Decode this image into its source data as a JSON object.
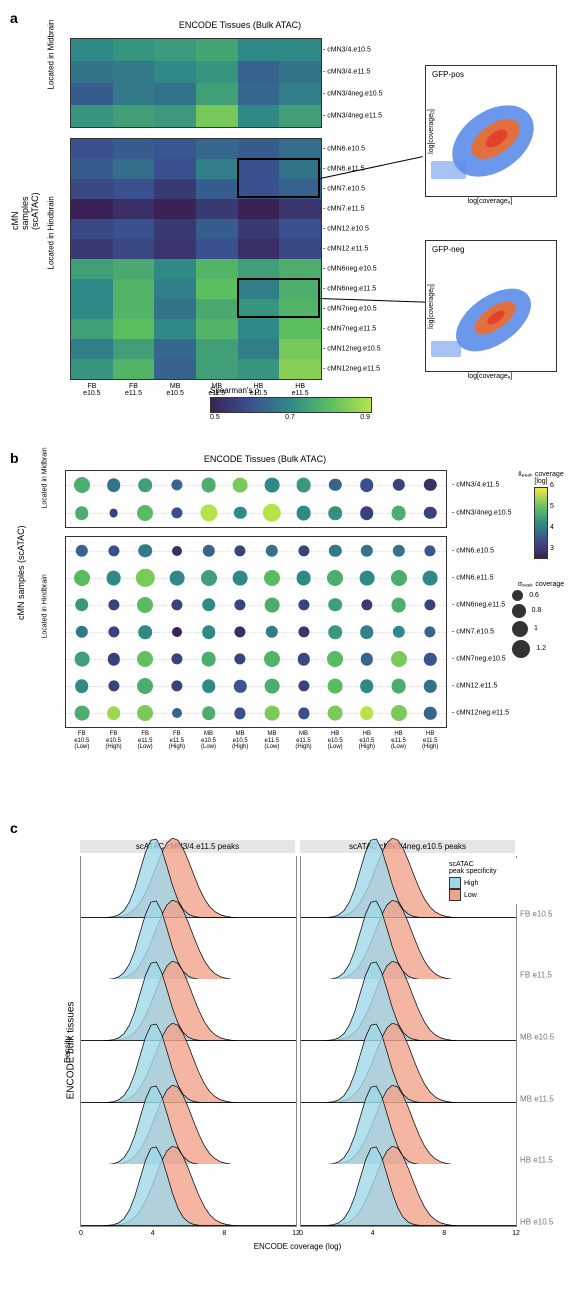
{
  "panel_a": {
    "letter": "a",
    "title": "ENCODE Tissues (Bulk ATAC)",
    "ylabel_outer": "cMN samples (scATAC)",
    "ylabel_top": "Located in Midbrain",
    "ylabel_bottom": "Located in Hindbrain",
    "x_labels": [
      "FB\ne10.5",
      "FB\ne11.5",
      "MB\ne10.5",
      "MB\ne11.5",
      "HB\ne10.5",
      "HB\ne11.5"
    ],
    "heatmap_top": {
      "rows": [
        "cMN3/4.e10.5",
        "cMN3/4.e11.5",
        "cMN3/4neg.e10.5",
        "cMN3/4neg.e11.5"
      ],
      "values": [
        [
          0.7,
          0.72,
          0.73,
          0.75,
          0.7,
          0.7
        ],
        [
          0.66,
          0.67,
          0.7,
          0.72,
          0.63,
          0.66
        ],
        [
          0.62,
          0.67,
          0.66,
          0.74,
          0.64,
          0.68
        ],
        [
          0.72,
          0.74,
          0.73,
          0.83,
          0.7,
          0.74
        ]
      ]
    },
    "heatmap_bottom": {
      "rows": [
        "cMN6.e10.5",
        "cMN6.e11.5",
        "cMN7.e10.5",
        "cMN7.e11.5",
        "cMN12.e10.5",
        "cMN12.e11.5",
        "cMN6neg.e10.5",
        "cMN6neg.e11.5",
        "cMN7neg.e10.5",
        "cMN7neg.e11.5",
        "cMN12neg.e10.5",
        "cMN12neg.e11.5"
      ],
      "values": [
        [
          0.6,
          0.62,
          0.61,
          0.64,
          0.62,
          0.65
        ],
        [
          0.62,
          0.65,
          0.6,
          0.68,
          0.6,
          0.66
        ],
        [
          0.58,
          0.6,
          0.55,
          0.62,
          0.6,
          0.63
        ],
        [
          0.5,
          0.53,
          0.5,
          0.55,
          0.5,
          0.54
        ],
        [
          0.58,
          0.6,
          0.55,
          0.62,
          0.55,
          0.6
        ],
        [
          0.55,
          0.58,
          0.54,
          0.6,
          0.53,
          0.58
        ],
        [
          0.74,
          0.76,
          0.7,
          0.78,
          0.74,
          0.77
        ],
        [
          0.7,
          0.78,
          0.68,
          0.8,
          0.68,
          0.77
        ],
        [
          0.7,
          0.78,
          0.66,
          0.76,
          0.72,
          0.78
        ],
        [
          0.74,
          0.8,
          0.7,
          0.78,
          0.7,
          0.8
        ],
        [
          0.68,
          0.74,
          0.64,
          0.74,
          0.68,
          0.83
        ],
        [
          0.72,
          0.78,
          0.63,
          0.74,
          0.72,
          0.85
        ]
      ]
    },
    "legend": {
      "title": "Spearman's ρ",
      "min": 0.5,
      "mid": 0.7,
      "max": 0.9,
      "gradient": [
        "#3a2256",
        "#3a5290",
        "#2f8a87",
        "#5bbf60",
        "#b7e249"
      ]
    },
    "callouts": [
      {
        "heatmap": "bottom",
        "row_from": 1,
        "row_to": 3,
        "col_from": 4,
        "col_to": 6,
        "target": "scatter1"
      },
      {
        "heatmap": "bottom",
        "row_from": 7,
        "row_to": 9,
        "col_from": 4,
        "col_to": 6,
        "target": "scatter2"
      }
    ],
    "scatter": [
      {
        "title": "GFP-pos",
        "xlabel": "log[coverageₐ]",
        "ylabel": "log[coverageᵦ]",
        "xlim": [
          0,
          10
        ],
        "ylim": [
          0,
          10
        ],
        "ticks": [
          2,
          4,
          6,
          8,
          10
        ],
        "colors": [
          "#2d5fd3",
          "#ef6c2c",
          "#e33b2b"
        ]
      },
      {
        "title": "GFP-neg",
        "xlabel": "log[coverageₐ]",
        "ylabel": "log[coverageᵦ]",
        "xlim": [
          0,
          10
        ],
        "ylim": [
          0,
          10
        ],
        "ticks": [
          2,
          4,
          6,
          8,
          10
        ],
        "colors": [
          "#2d5fd3",
          "#ef6c2c",
          "#e33b2b"
        ]
      }
    ]
  },
  "panel_b": {
    "letter": "b",
    "title": "ENCODE Tissues (Bulk ATAC)",
    "ylabel_outer": "cMN samples (scATAC)",
    "ylabel_top": "Located in\nMidbrain",
    "ylabel_bottom": "Located in Hindbrain",
    "x_labels": [
      "FB\ne10.5\n(Low)",
      "FB\ne10.5\n(High)",
      "FB\ne11.5\n(Low)",
      "FB\ne11.5\n(High)",
      "MB\ne10.5\n(Low)",
      "MB\ne10.5\n(High)",
      "MB\ne11.5\n(Low)",
      "MB\ne11.5\n(High)",
      "HB\ne10.5\n(Low)",
      "HB\ne10.5\n(High)",
      "HB\ne11.5\n(Low)",
      "HB\ne11.5\n(High)"
    ],
    "rows_top": [
      "cMN3/4.e11.5",
      "cMN3/4neg.e10.5"
    ],
    "rows_bottom": [
      "cMN6.e10.5",
      "cMN6.e11.5",
      "cMN6neg.e11.5",
      "cMN7.e10.5",
      "cMN7neg.e10.5",
      "cMN12.e11.5",
      "cMN12neg.e11.5"
    ],
    "dots_top": [
      [
        {
          "c": 5.0,
          "s": 1.0
        },
        {
          "c": 4.2,
          "s": 0.8
        },
        {
          "c": 4.8,
          "s": 0.8
        },
        {
          "c": 4.0,
          "s": 0.6
        },
        {
          "c": 5.0,
          "s": 0.9
        },
        {
          "c": 5.5,
          "s": 0.9
        },
        {
          "c": 4.5,
          "s": 0.9
        },
        {
          "c": 4.7,
          "s": 0.9
        },
        {
          "c": 4.0,
          "s": 0.7
        },
        {
          "c": 3.7,
          "s": 0.8
        },
        {
          "c": 3.5,
          "s": 0.7
        },
        {
          "c": 3.2,
          "s": 0.7
        }
      ],
      [
        {
          "c": 5.0,
          "s": 0.8
        },
        {
          "c": 3.5,
          "s": 0.4
        },
        {
          "c": 5.2,
          "s": 1.0
        },
        {
          "c": 3.7,
          "s": 0.6
        },
        {
          "c": 6.0,
          "s": 1.1
        },
        {
          "c": 4.5,
          "s": 0.7
        },
        {
          "c": 6.2,
          "s": 1.2
        },
        {
          "c": 4.5,
          "s": 0.9
        },
        {
          "c": 4.6,
          "s": 0.8
        },
        {
          "c": 3.5,
          "s": 0.8
        },
        {
          "c": 5.0,
          "s": 0.9
        },
        {
          "c": 3.5,
          "s": 0.7
        }
      ]
    ],
    "dots_bottom": [
      [
        {
          "c": 4.0,
          "s": 0.7
        },
        {
          "c": 3.7,
          "s": 0.6
        },
        {
          "c": 4.3,
          "s": 0.8
        },
        {
          "c": 3.2,
          "s": 0.5
        },
        {
          "c": 4.0,
          "s": 0.7
        },
        {
          "c": 3.5,
          "s": 0.6
        },
        {
          "c": 4.2,
          "s": 0.7
        },
        {
          "c": 3.5,
          "s": 0.6
        },
        {
          "c": 4.3,
          "s": 0.7
        },
        {
          "c": 4.2,
          "s": 0.7
        },
        {
          "c": 4.2,
          "s": 0.7
        },
        {
          "c": 3.8,
          "s": 0.6
        }
      ],
      [
        {
          "c": 5.2,
          "s": 1.0
        },
        {
          "c": 4.5,
          "s": 0.9
        },
        {
          "c": 5.5,
          "s": 1.2
        },
        {
          "c": 4.5,
          "s": 0.9
        },
        {
          "c": 4.8,
          "s": 1.0
        },
        {
          "c": 4.5,
          "s": 0.9
        },
        {
          "c": 5.2,
          "s": 1.0
        },
        {
          "c": 4.5,
          "s": 0.9
        },
        {
          "c": 5.0,
          "s": 1.0
        },
        {
          "c": 4.5,
          "s": 0.9
        },
        {
          "c": 5.0,
          "s": 1.0
        },
        {
          "c": 4.5,
          "s": 0.9
        }
      ],
      [
        {
          "c": 4.7,
          "s": 0.8
        },
        {
          "c": 3.5,
          "s": 0.6
        },
        {
          "c": 5.2,
          "s": 1.0
        },
        {
          "c": 3.5,
          "s": 0.6
        },
        {
          "c": 4.5,
          "s": 0.8
        },
        {
          "c": 3.5,
          "s": 0.6
        },
        {
          "c": 5.0,
          "s": 0.9
        },
        {
          "c": 3.5,
          "s": 0.6
        },
        {
          "c": 4.8,
          "s": 0.8
        },
        {
          "c": 3.4,
          "s": 0.6
        },
        {
          "c": 5.0,
          "s": 0.9
        },
        {
          "c": 3.5,
          "s": 0.6
        }
      ],
      [
        {
          "c": 4.3,
          "s": 0.7
        },
        {
          "c": 3.5,
          "s": 0.6
        },
        {
          "c": 4.5,
          "s": 0.8
        },
        {
          "c": 3.0,
          "s": 0.5
        },
        {
          "c": 4.5,
          "s": 0.8
        },
        {
          "c": 3.2,
          "s": 0.6
        },
        {
          "c": 4.3,
          "s": 0.7
        },
        {
          "c": 3.3,
          "s": 0.6
        },
        {
          "c": 4.7,
          "s": 0.8
        },
        {
          "c": 4.4,
          "s": 0.8
        },
        {
          "c": 4.5,
          "s": 0.7
        },
        {
          "c": 4.0,
          "s": 0.6
        }
      ],
      [
        {
          "c": 4.8,
          "s": 0.9
        },
        {
          "c": 3.5,
          "s": 0.7
        },
        {
          "c": 5.3,
          "s": 1.0
        },
        {
          "c": 3.5,
          "s": 0.6
        },
        {
          "c": 5.0,
          "s": 0.9
        },
        {
          "c": 3.5,
          "s": 0.6
        },
        {
          "c": 5.1,
          "s": 1.0
        },
        {
          "c": 3.6,
          "s": 0.7
        },
        {
          "c": 5.2,
          "s": 1.0
        },
        {
          "c": 4.0,
          "s": 0.7
        },
        {
          "c": 5.5,
          "s": 1.0
        },
        {
          "c": 3.8,
          "s": 0.7
        }
      ],
      [
        {
          "c": 4.5,
          "s": 0.8
        },
        {
          "c": 3.5,
          "s": 0.6
        },
        {
          "c": 5.0,
          "s": 1.0
        },
        {
          "c": 3.5,
          "s": 0.6
        },
        {
          "c": 4.5,
          "s": 0.8
        },
        {
          "c": 3.8,
          "s": 0.7
        },
        {
          "c": 5.0,
          "s": 0.9
        },
        {
          "c": 3.5,
          "s": 0.6
        },
        {
          "c": 5.2,
          "s": 0.9
        },
        {
          "c": 4.5,
          "s": 0.8
        },
        {
          "c": 5.0,
          "s": 0.9
        },
        {
          "c": 4.2,
          "s": 0.7
        }
      ],
      [
        {
          "c": 5.0,
          "s": 0.9
        },
        {
          "c": 5.8,
          "s": 0.8
        },
        {
          "c": 5.5,
          "s": 1.0
        },
        {
          "c": 4.0,
          "s": 0.5
        },
        {
          "c": 5.0,
          "s": 0.8
        },
        {
          "c": 3.7,
          "s": 0.6
        },
        {
          "c": 5.5,
          "s": 0.9
        },
        {
          "c": 3.7,
          "s": 0.6
        },
        {
          "c": 5.5,
          "s": 0.9
        },
        {
          "c": 6.0,
          "s": 0.8
        },
        {
          "c": 5.5,
          "s": 1.0
        },
        {
          "c": 4.0,
          "s": 0.7
        }
      ]
    ],
    "legend_color": {
      "title": "x̄ₚₑₐₖ coverage [log]",
      "min": 3,
      "max": 6,
      "ticks": [
        3,
        4,
        5,
        6
      ],
      "gradient": [
        "#f4e742",
        "#73c264",
        "#2d8d82",
        "#3d4f89",
        "#3a2256"
      ]
    },
    "legend_size": {
      "title": "σₚₑₐₖ coverage",
      "values": [
        0.6,
        0.8,
        1.0,
        1.2
      ]
    }
  },
  "panel_c": {
    "letter": "c",
    "facets": [
      "scATAC cMN3/4.e11.5 peaks",
      "scATAC cMN3/4neg.e10.5 peaks"
    ],
    "ylabel_outer": "ENCODE bulk tissues",
    "ylabel_inner": "Density",
    "xlabel": "ENCODE coverage (log)",
    "x_ticks": [
      0,
      4,
      8,
      12
    ],
    "rows": [
      "FB e10.5",
      "FB e11.5",
      "MB e10.5",
      "MB e11.5",
      "HB e11.5",
      "HB e10.5"
    ],
    "legend": {
      "title": "scATAC\npeak specificity",
      "items": [
        {
          "label": "High",
          "color": "#9fd8e8"
        },
        {
          "label": "Low",
          "color": "#f2a28c"
        }
      ]
    },
    "colors": {
      "high": "#9fd8e8",
      "low": "#f2a28c",
      "stroke": "#000"
    }
  }
}
